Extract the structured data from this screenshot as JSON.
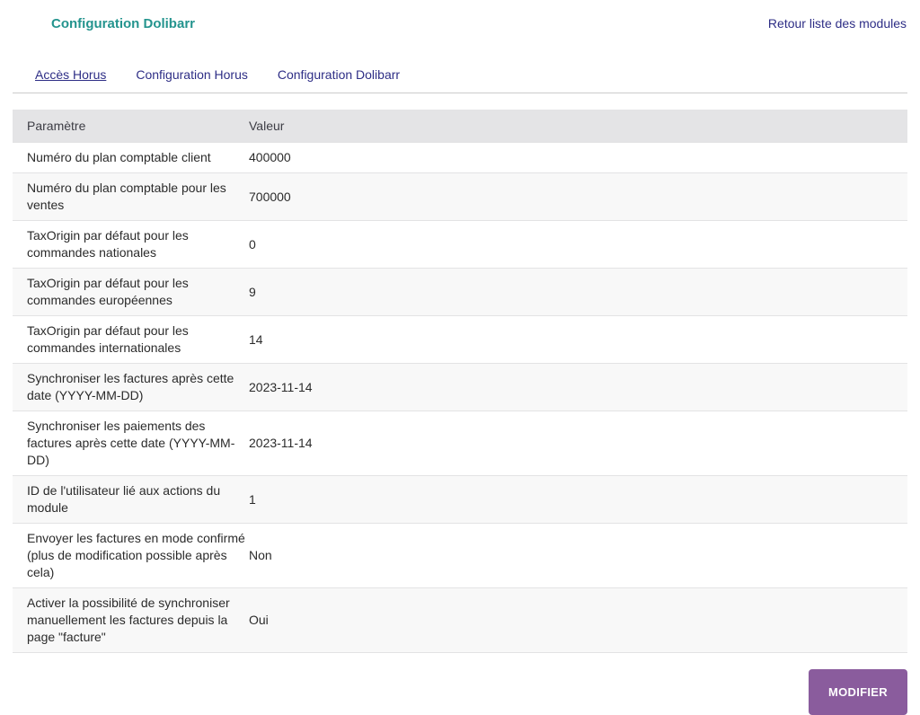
{
  "page": {
    "title": "Configuration Dolibarr",
    "back_link": "Retour liste des modules"
  },
  "tabs": [
    {
      "label": "Accès Horus",
      "active": true
    },
    {
      "label": "Configuration Horus",
      "active": false
    },
    {
      "label": "Configuration Dolibarr",
      "active": false
    }
  ],
  "table": {
    "headers": {
      "param": "Paramètre",
      "value": "Valeur"
    },
    "rows": [
      {
        "param": "Numéro du plan comptable client",
        "value": "400000"
      },
      {
        "param": "Numéro du plan comptable pour les ventes",
        "value": "700000"
      },
      {
        "param": "TaxOrigin par défaut pour les commandes nationales",
        "value": "0"
      },
      {
        "param": "TaxOrigin par défaut pour les commandes européennes",
        "value": "9"
      },
      {
        "param": "TaxOrigin par défaut pour les commandes internationales",
        "value": "14"
      },
      {
        "param": "Synchroniser les factures après cette date (YYYY-MM-DD)",
        "value": "2023-11-14"
      },
      {
        "param": "Synchroniser les paiements des factures après cette date (YYYY-MM-DD)",
        "value": "2023-11-14"
      },
      {
        "param": "ID de l'utilisateur lié aux actions du module",
        "value": "1"
      },
      {
        "param": "Envoyer les factures en mode confirmé (plus de modification possible après cela)",
        "value": "Non"
      },
      {
        "param": "Activer la possibilité de synchroniser manuellement les factures depuis la page \"facture\"",
        "value": "Oui"
      }
    ]
  },
  "actions": {
    "modify_label": "MODIFIER"
  },
  "colors": {
    "title_teal": "#24948e",
    "link_navy": "#2e2e86",
    "table_header_bg": "#e4e4e6",
    "row_alt_bg": "#f8f8f8",
    "row_border": "#e3e3e4",
    "button_purple": "#8a5c9d"
  }
}
